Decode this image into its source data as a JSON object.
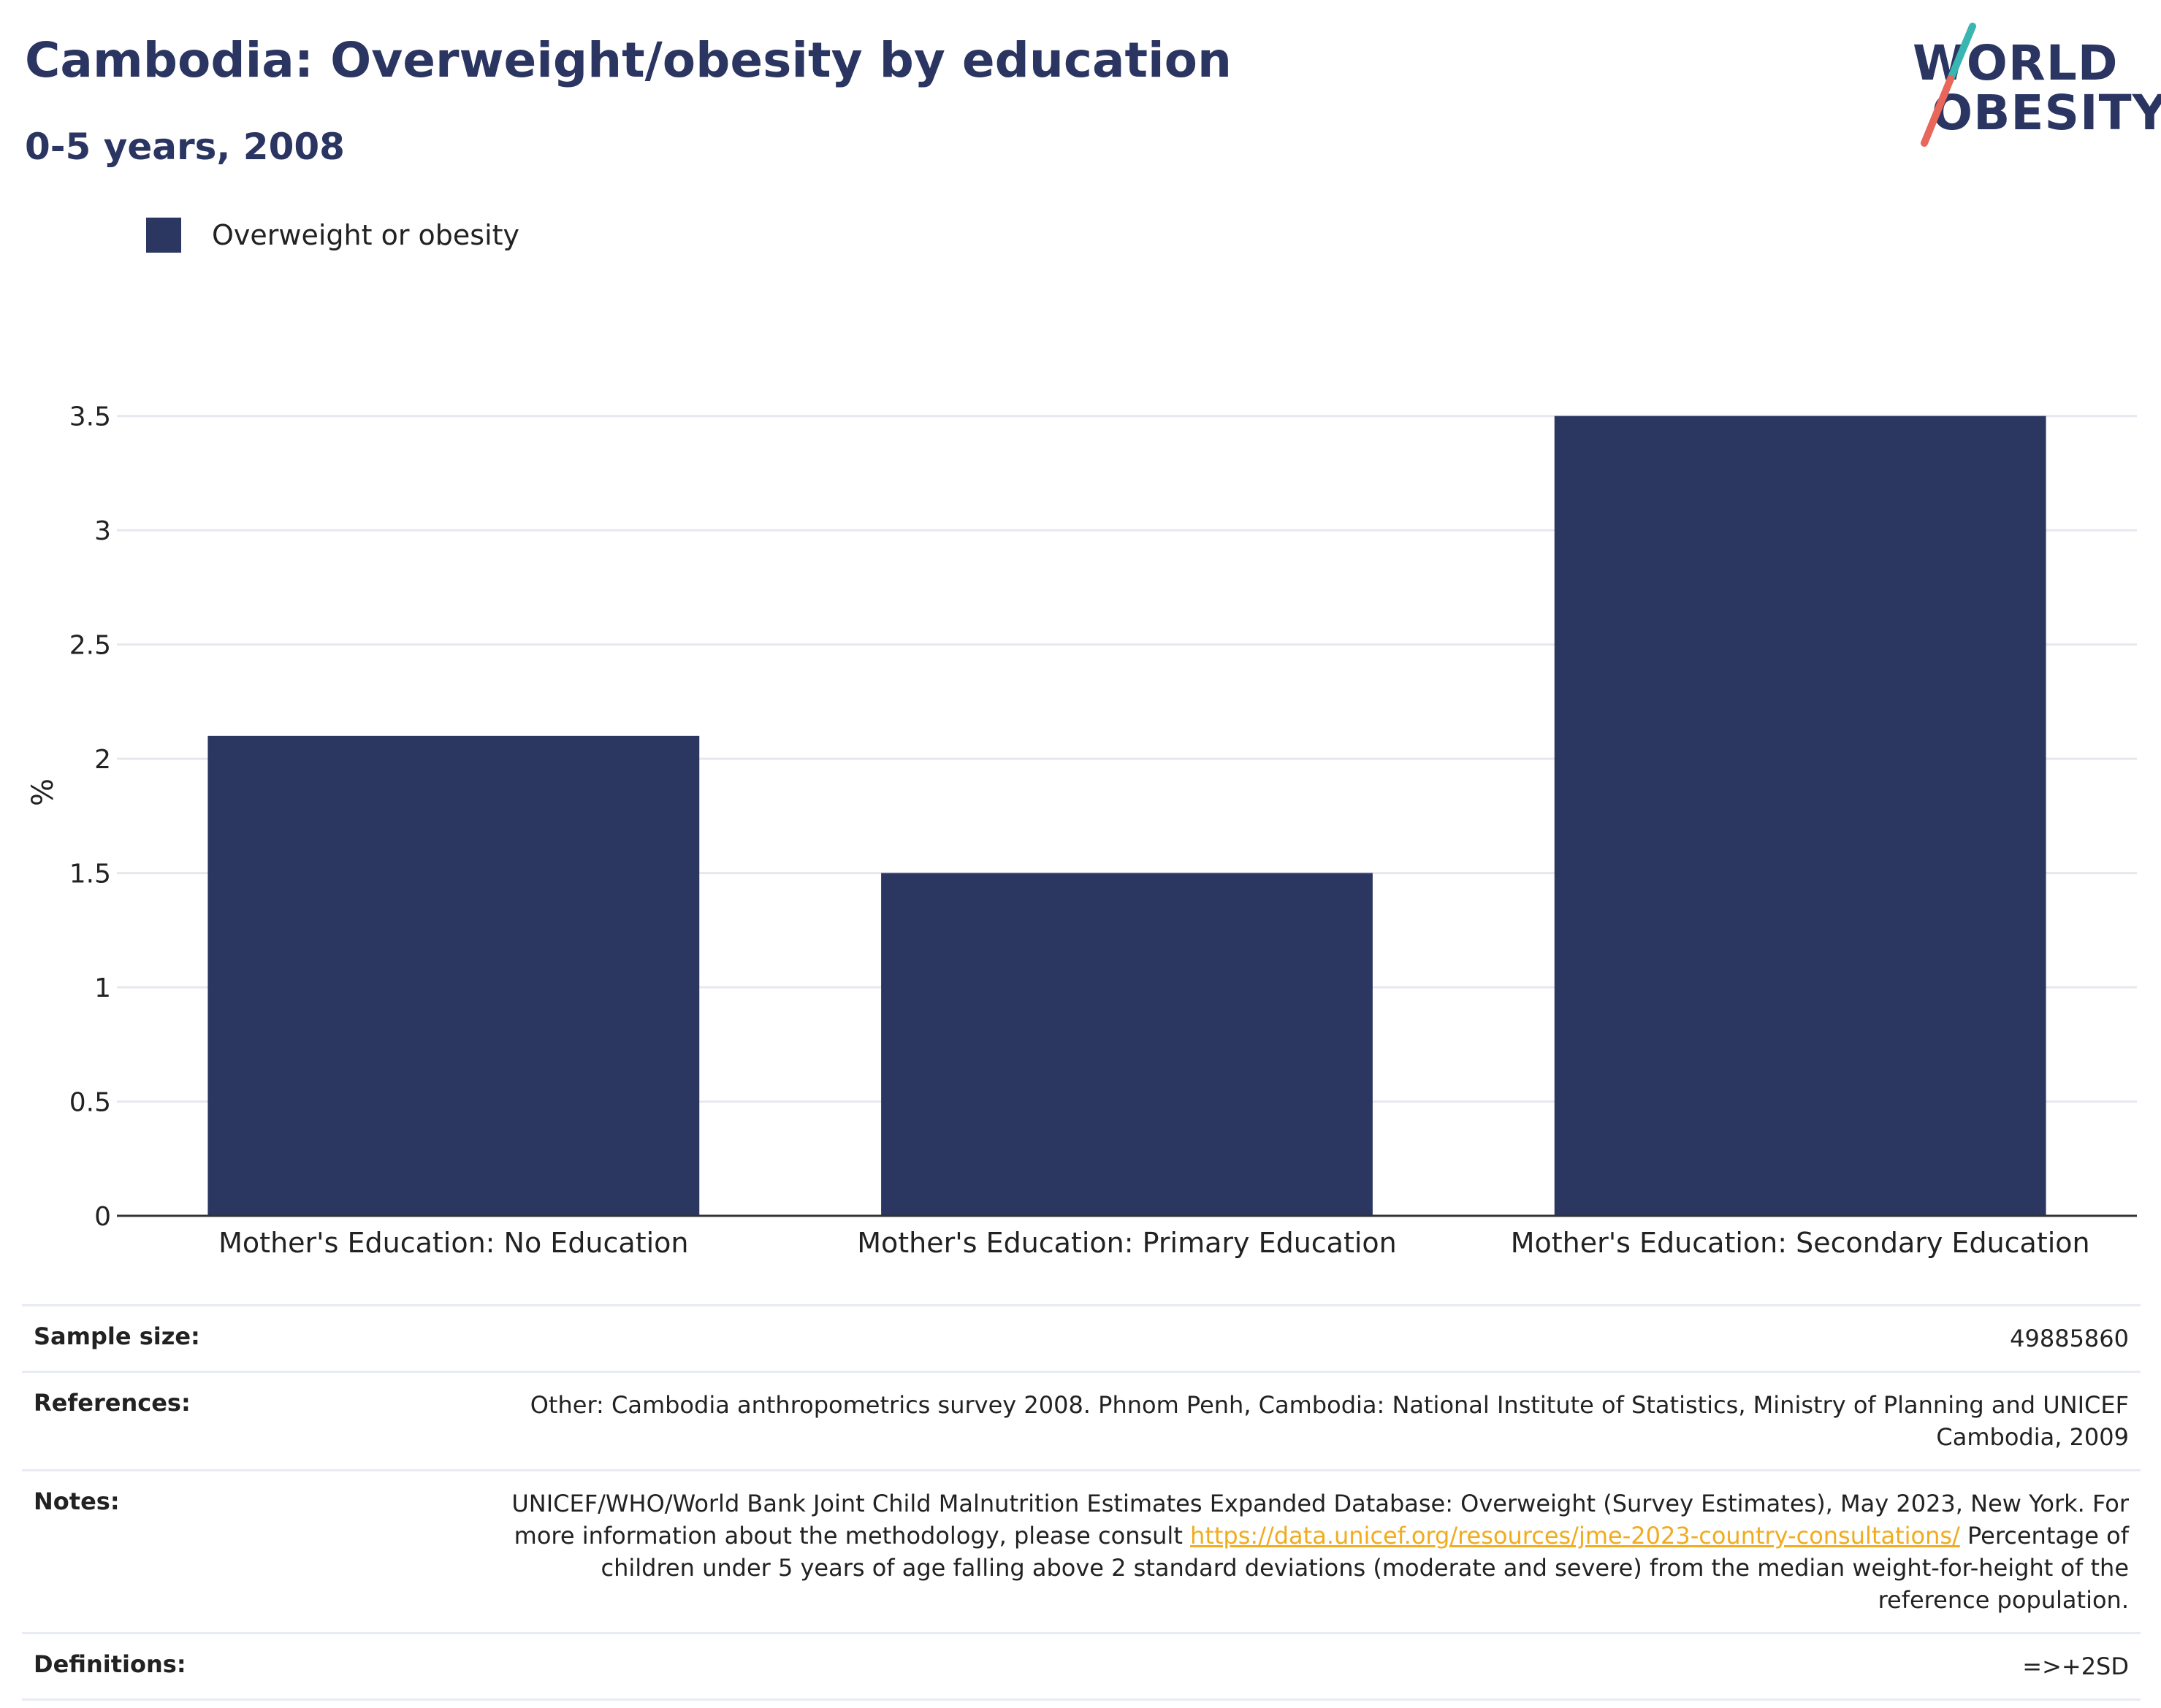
{
  "header": {
    "title": "Cambodia: Overweight/obesity by education",
    "subtitle": "0-5 years, 2008"
  },
  "logo": {
    "line1": "WORLD",
    "line2": "OBESITY",
    "colors": {
      "text": "#2b3561",
      "slash_top": "#39b6b0",
      "slash_bottom": "#e8665a"
    }
  },
  "legend": {
    "label": "Overweight or obesity",
    "color": "#2b3661"
  },
  "chart_data": {
    "type": "bar",
    "categories": [
      "Mother's Education: No Education",
      "Mother's Education: Primary Education",
      "Mother's Education: Secondary Education"
    ],
    "series": [
      {
        "name": "Overweight or obesity",
        "values": [
          2.1,
          1.5,
          3.5
        ],
        "color": "#2b3661"
      }
    ],
    "ylabel": "%",
    "ylim": [
      0,
      3.5
    ],
    "yticks": [
      0,
      0.5,
      1,
      1.5,
      2,
      2.5,
      3,
      3.5
    ],
    "ytick_labels": [
      "0",
      "0.5",
      "1",
      "1.5",
      "2",
      "2.5",
      "3",
      "3.5"
    ],
    "grid": true,
    "legend_position": "top-left"
  },
  "footer": {
    "rows": [
      {
        "key": "Sample size:",
        "value": "49885860"
      },
      {
        "key": "References:",
        "value": "Other: Cambodia anthropometrics survey 2008. Phnom Penh, Cambodia: National Institute of Statistics, Ministry of Planning and UNICEF Cambodia, 2009"
      },
      {
        "key": "Notes:",
        "value_before_link": "UNICEF/WHO/World Bank Joint Child Malnutrition Estimates Expanded Database: Overweight (Survey Estimates), May 2023, New York. For more information about the methodology, please consult ",
        "link_text": "https://data.unicef.org/resources/jme-2023-country-consultations/",
        "value_after_link": " Percentage of children under 5 years of age falling above 2 standard deviations (moderate and severe) from the median weight-for-height of the reference population."
      },
      {
        "key": "Definitions:",
        "value": "=>+2SD"
      }
    ]
  }
}
